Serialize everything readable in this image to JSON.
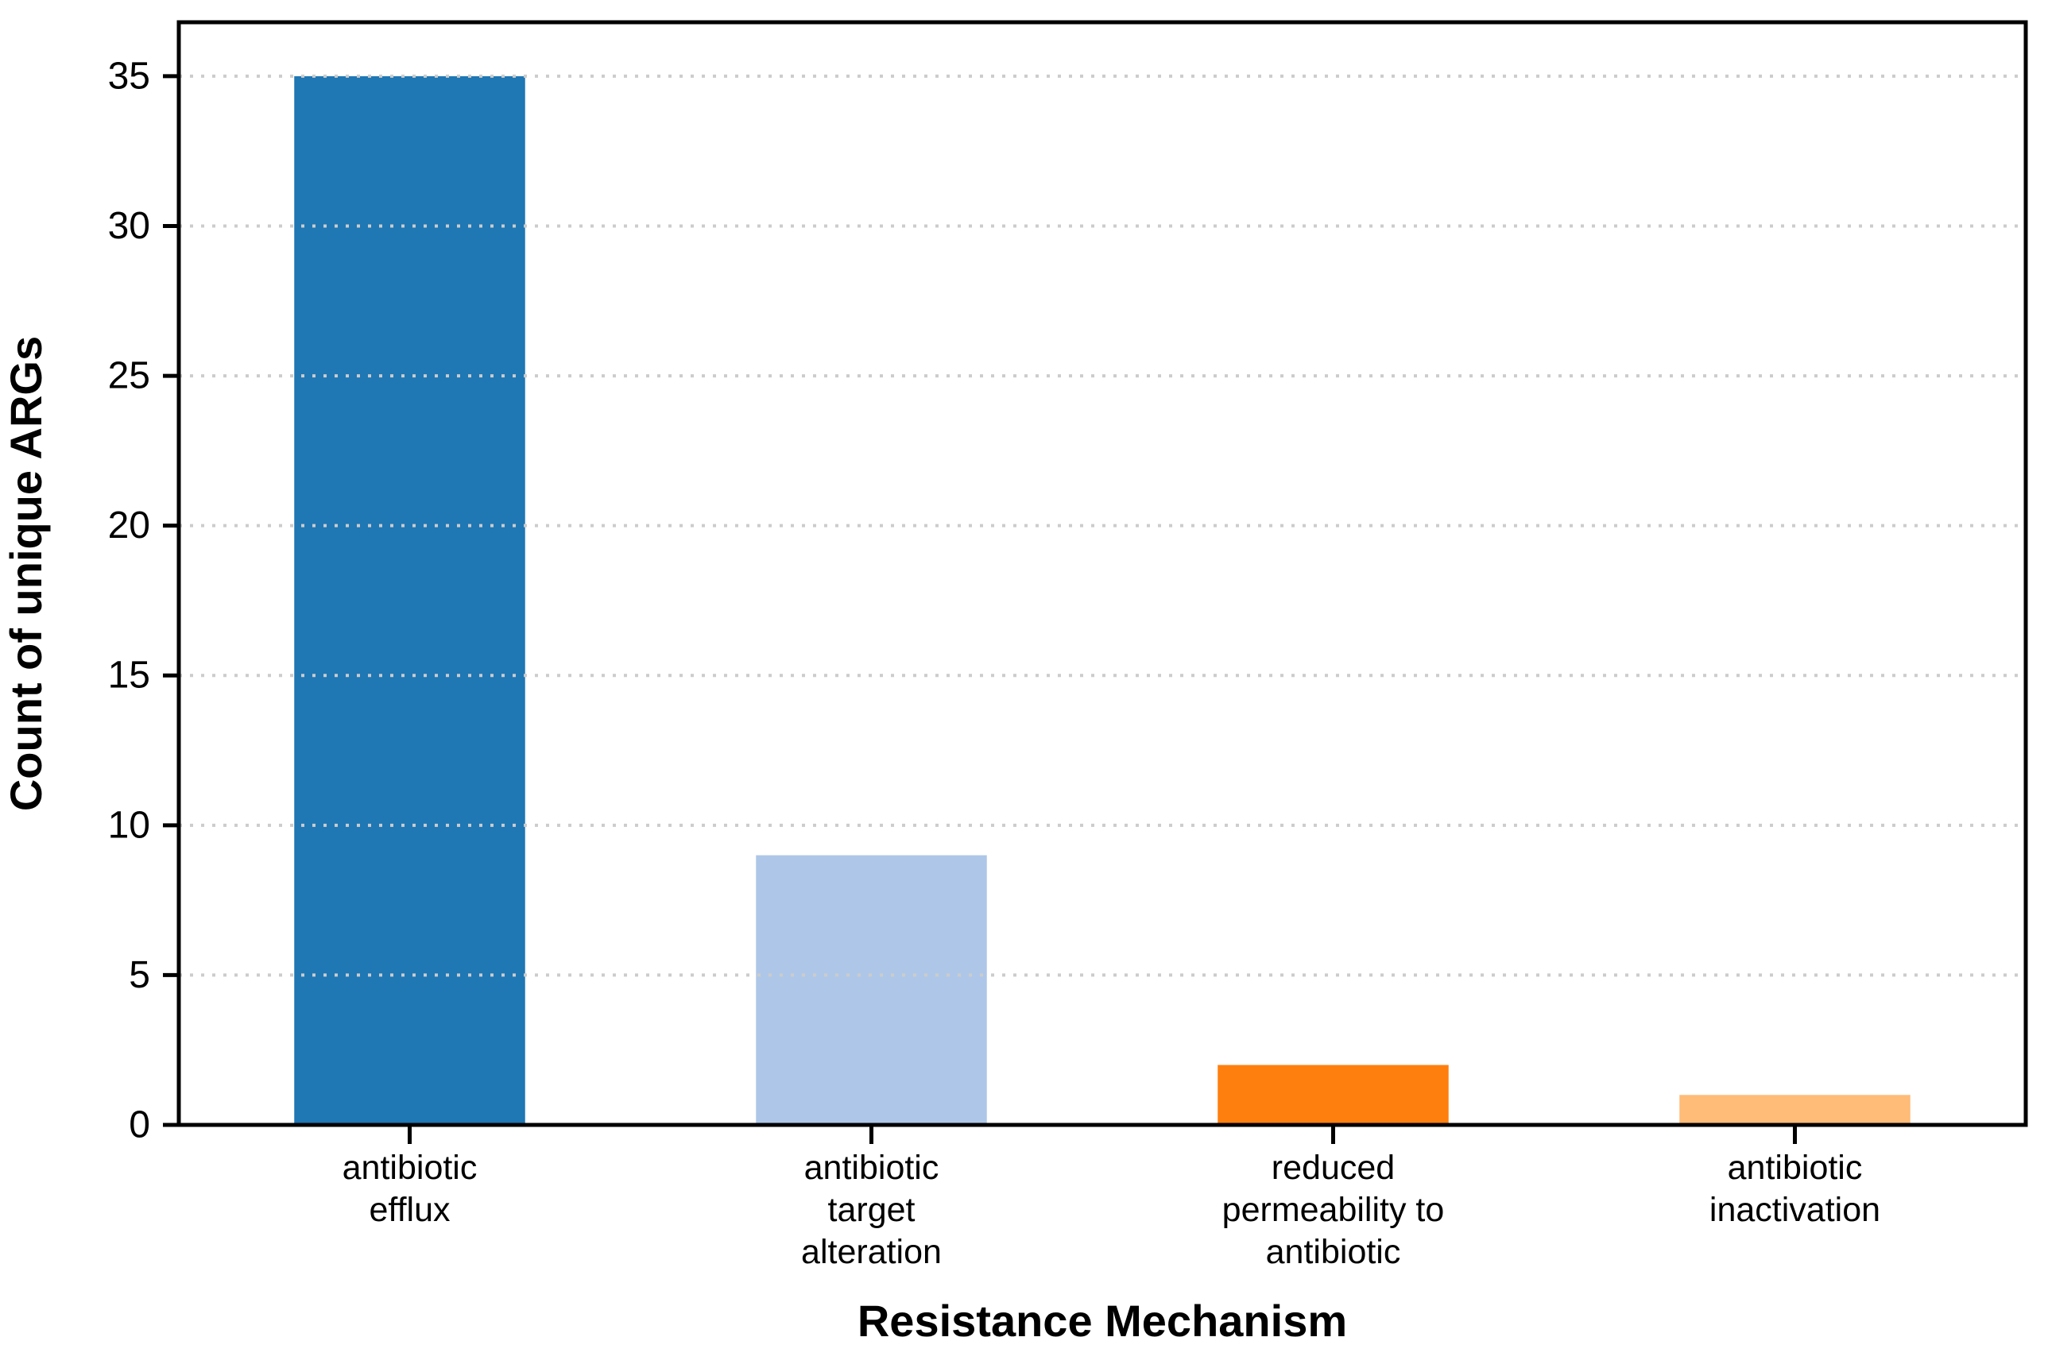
{
  "chart_data": {
    "type": "bar",
    "title": "",
    "xlabel": "Resistance Mechanism",
    "ylabel": "Count of unique ARGs",
    "categories": [
      "antibiotic\nefflux",
      "antibiotic\ntarget\nalteration",
      "reduced\npermeability to\nantibiotic",
      "antibiotic\ninactivation"
    ],
    "values": [
      35,
      9,
      2,
      1
    ],
    "bar_colors": [
      "#1f77b4",
      "#aec7e8",
      "#ff7f0e",
      "#ffbb78"
    ],
    "yticks": [
      0,
      5,
      10,
      15,
      20,
      25,
      30,
      35
    ],
    "ylim": [
      0,
      36.8
    ],
    "grid": "horizontal-dotted",
    "grid_color": "#cccccc",
    "grid_on_top_of_bars": true,
    "axis_color": "#000000",
    "background": "#ffffff",
    "legend_position": "none",
    "bar_width_fraction": 0.5
  }
}
